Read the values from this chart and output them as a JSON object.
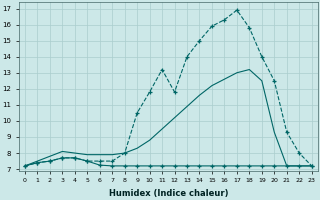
{
  "xlabel": "Humidex (Indice chaleur)",
  "bg_color": "#cce8e8",
  "grid_color": "#aacece",
  "line_color": "#006666",
  "xlim": [
    -0.5,
    23.5
  ],
  "ylim": [
    6.9,
    17.4
  ],
  "xticks": [
    0,
    1,
    2,
    3,
    4,
    5,
    6,
    7,
    8,
    9,
    10,
    11,
    12,
    13,
    14,
    15,
    16,
    17,
    18,
    19,
    20,
    21,
    22,
    23
  ],
  "yticks": [
    7,
    8,
    9,
    10,
    11,
    12,
    13,
    14,
    15,
    16,
    17
  ],
  "line1_x": [
    0,
    1,
    2,
    3,
    4,
    5,
    6,
    7,
    8,
    9,
    10,
    11,
    12,
    13,
    14,
    15,
    16,
    17,
    18,
    19,
    20,
    21,
    22,
    23
  ],
  "line1_y": [
    7.2,
    7.4,
    7.5,
    7.7,
    7.7,
    7.5,
    7.5,
    7.5,
    8.0,
    10.5,
    11.8,
    13.2,
    11.8,
    14.0,
    15.0,
    15.9,
    16.3,
    16.9,
    15.8,
    14.0,
    12.5,
    9.3,
    8.0,
    7.2
  ],
  "line2_x": [
    0,
    1,
    2,
    3,
    4,
    5,
    6,
    7,
    8,
    9,
    10,
    11,
    12,
    13,
    14,
    15,
    16,
    17,
    18,
    19,
    20,
    21,
    22,
    23
  ],
  "line2_y": [
    7.2,
    7.4,
    7.5,
    7.7,
    7.7,
    7.5,
    7.25,
    7.2,
    7.2,
    7.2,
    7.2,
    7.2,
    7.2,
    7.2,
    7.2,
    7.2,
    7.2,
    7.2,
    7.2,
    7.2,
    7.2,
    7.2,
    7.2,
    7.2
  ],
  "line3_x": [
    0,
    1,
    2,
    3,
    4,
    5,
    6,
    7,
    8,
    9,
    10,
    11,
    12,
    13,
    14,
    15,
    16,
    17,
    18,
    19,
    20,
    21,
    22,
    23
  ],
  "line3_y": [
    7.2,
    7.5,
    7.8,
    8.1,
    8.0,
    7.9,
    7.9,
    7.9,
    8.0,
    8.3,
    8.8,
    9.5,
    10.2,
    10.9,
    11.6,
    12.2,
    12.6,
    13.0,
    13.2,
    12.5,
    9.3,
    7.2,
    7.2,
    7.2
  ]
}
